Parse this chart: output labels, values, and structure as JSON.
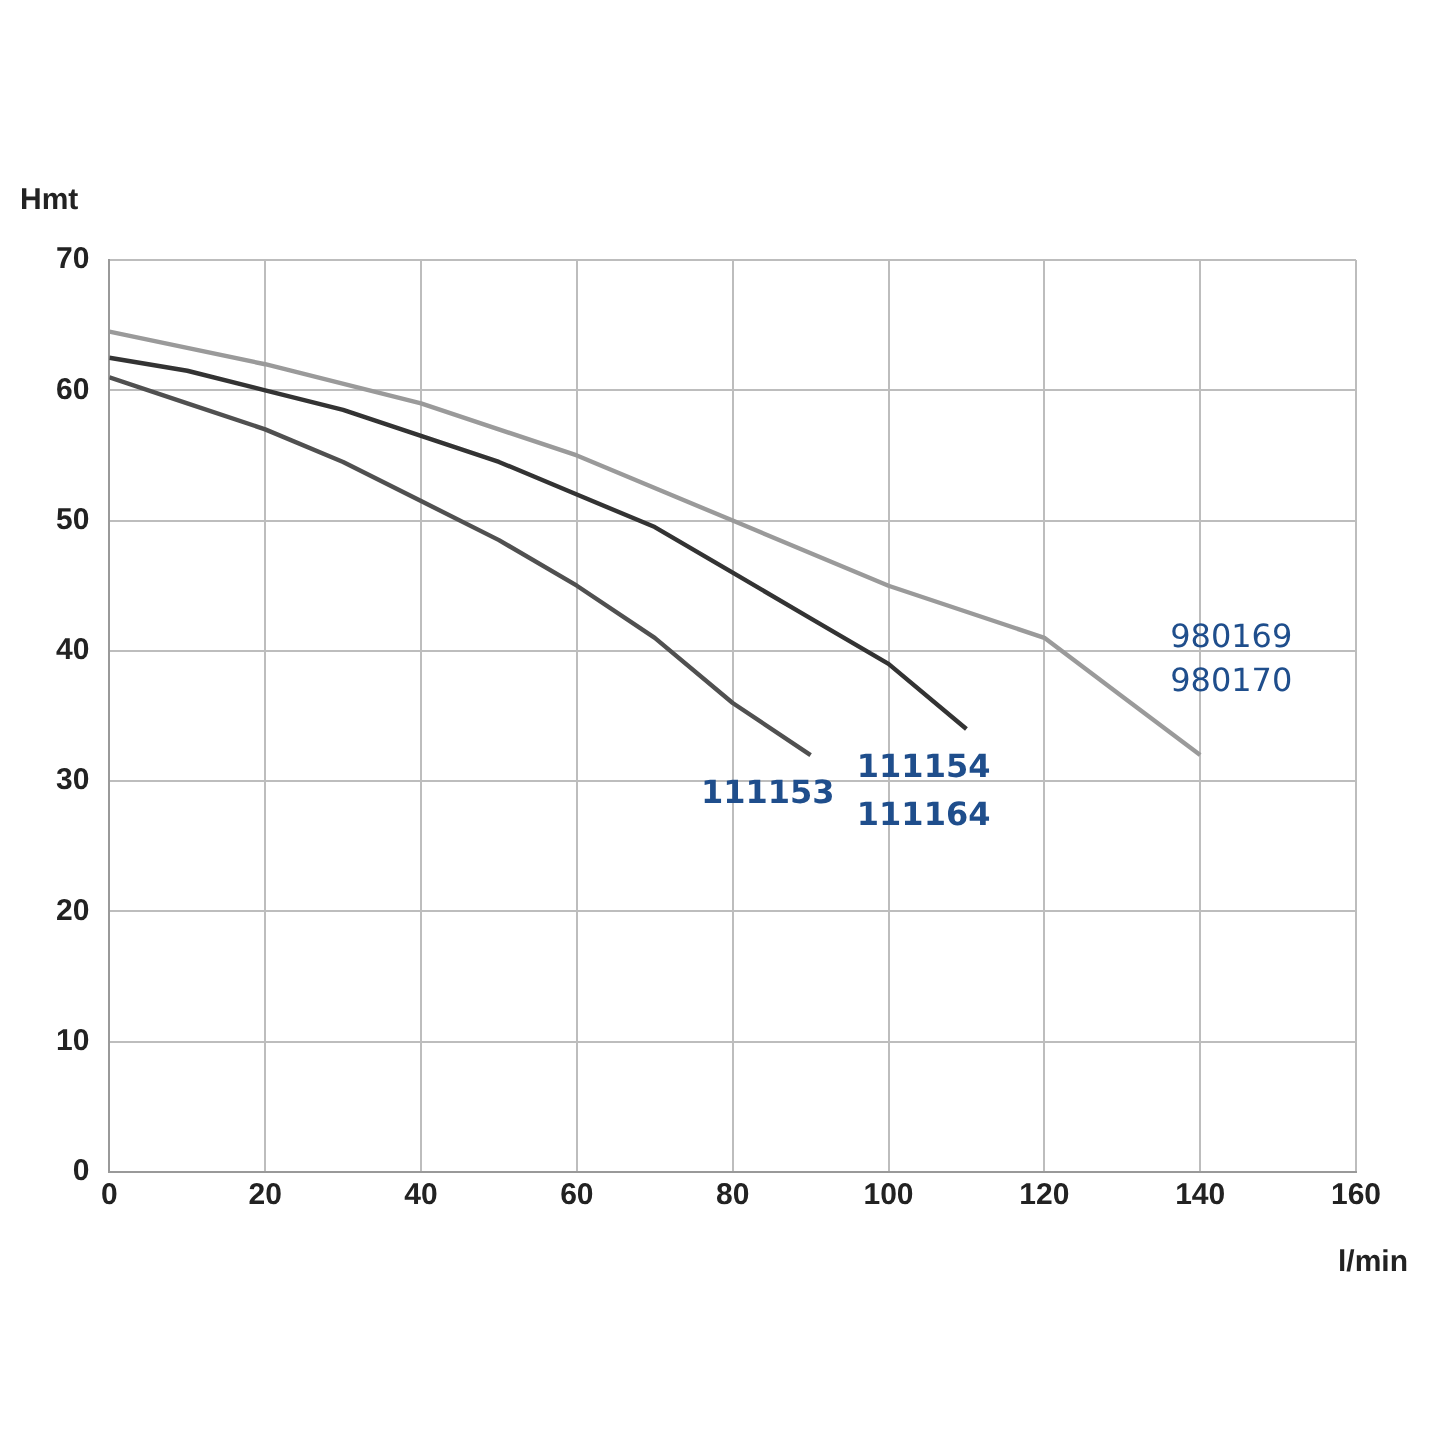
{
  "chart_data": {
    "type": "line",
    "xlabel": "l/min",
    "ylabel": "Hmt",
    "xlim": [
      0,
      160
    ],
    "xticks": [
      0,
      20,
      40,
      60,
      80,
      100,
      120,
      140,
      160
    ],
    "ylim": [
      0,
      70
    ],
    "yticks": [
      0,
      10,
      20,
      30,
      40,
      50,
      60,
      70
    ],
    "grid": true,
    "legend": false,
    "marker": "none",
    "series": [
      {
        "name": "111153",
        "color": "#505050",
        "x": [
          0,
          10,
          20,
          30,
          40,
          50,
          60,
          70,
          80,
          90
        ],
        "values": [
          61,
          59,
          57,
          54.5,
          51.5,
          48.5,
          45,
          41,
          36,
          32
        ]
      },
      {
        "name": "111154\n111164",
        "color": "#333333",
        "x": [
          0,
          10,
          20,
          30,
          40,
          50,
          60,
          70,
          80,
          90,
          100,
          110
        ],
        "values": [
          62.5,
          61.5,
          60,
          58.5,
          56.5,
          54.5,
          52,
          49.5,
          46,
          42.5,
          39,
          34
        ]
      },
      {
        "name": "980169\n980170",
        "color": "#9a9a9a",
        "x": [
          0,
          20,
          40,
          60,
          80,
          100,
          120,
          130,
          140
        ],
        "values": [
          64.5,
          62,
          59,
          55,
          50,
          45,
          41,
          36.5,
          32
        ]
      }
    ]
  }
}
